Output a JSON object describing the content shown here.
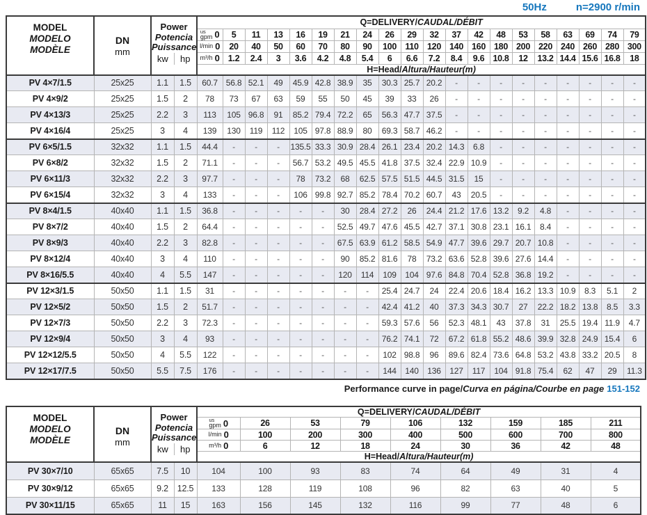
{
  "page_header": {
    "frequency": "50Hz",
    "speed": "n=2900 r/min"
  },
  "colors": {
    "accent_blue": "#1677bd",
    "row_shade": "#e8eaf2",
    "grid_light": "#b4b4b4",
    "grid_dark": "#3a3a3a"
  },
  "note": {
    "plain": "Performance curve in page/",
    "italic": "Curva en página/Courbe en page",
    "pages": "151-152"
  },
  "tables": [
    {
      "name": "small-pumps",
      "header": {
        "model_lines": [
          "MODEL",
          "MODELO",
          "MODÈLE"
        ],
        "dn_label": "DN",
        "dn_unit": "mm",
        "power_lines": [
          "Power",
          "Potencia",
          "Puissance"
        ],
        "kw_label": "kw",
        "hp_label": "hp",
        "q_title": {
          "plain": "Q=DELIVERY/",
          "italic": "CAUDAL/DÉBIT"
        },
        "h_title": {
          "plain": "H=Head/",
          "italic": "Altura/Hauteur",
          "unit": "(m)"
        },
        "unit_rows": [
          {
            "label_top": "us",
            "label": "gpm",
            "zero": "0",
            "values": [
              "5",
              "11",
              "13",
              "16",
              "19",
              "21",
              "24",
              "26",
              "29",
              "32",
              "37",
              "42",
              "48",
              "53",
              "58",
              "63",
              "69",
              "74",
              "79"
            ]
          },
          {
            "label": "l/min",
            "zero": "0",
            "values": [
              "20",
              "40",
              "50",
              "60",
              "70",
              "80",
              "90",
              "100",
              "110",
              "120",
              "140",
              "160",
              "180",
              "200",
              "220",
              "240",
              "260",
              "280",
              "300"
            ]
          },
          {
            "label": "m³/h",
            "zero": "0",
            "values": [
              "1.2",
              "2.4",
              "3",
              "3.6",
              "4.2",
              "4.8",
              "5.4",
              "6",
              "6.6",
              "7.2",
              "8.4",
              "9.6",
              "10.8",
              "12",
              "13.2",
              "14.4",
              "15.6",
              "16.8",
              "18"
            ]
          }
        ]
      },
      "group_breaks": [
        3,
        7,
        12
      ],
      "rows": [
        {
          "model": "PV 4×7/1.5",
          "dn": "25x25",
          "kw": "1.1",
          "hp": "1.5",
          "heads": [
            "60.7",
            "56.8",
            "52.1",
            "49",
            "45.9",
            "42.8",
            "38.9",
            "35",
            "30.3",
            "25.7",
            "20.2",
            "-",
            "-",
            "-",
            "-",
            "-",
            "-",
            "-",
            "-",
            "-"
          ]
        },
        {
          "model": "PV 4×9/2",
          "dn": "25x25",
          "kw": "1.5",
          "hp": "2",
          "heads": [
            "78",
            "73",
            "67",
            "63",
            "59",
            "55",
            "50",
            "45",
            "39",
            "33",
            "26",
            "-",
            "-",
            "-",
            "-",
            "-",
            "-",
            "-",
            "-",
            "-"
          ]
        },
        {
          "model": "PV 4×13/3",
          "dn": "25x25",
          "kw": "2.2",
          "hp": "3",
          "heads": [
            "113",
            "105",
            "96.8",
            "91",
            "85.2",
            "79.4",
            "72.2",
            "65",
            "56.3",
            "47.7",
            "37.5",
            "-",
            "-",
            "-",
            "-",
            "-",
            "-",
            "-",
            "-",
            "-"
          ]
        },
        {
          "model": "PV 4×16/4",
          "dn": "25x25",
          "kw": "3",
          "hp": "4",
          "heads": [
            "139",
            "130",
            "119",
            "112",
            "105",
            "97.8",
            "88.9",
            "80",
            "69.3",
            "58.7",
            "46.2",
            "-",
            "-",
            "-",
            "-",
            "-",
            "-",
            "-",
            "-",
            "-"
          ]
        },
        {
          "model": "PV 6×5/1.5",
          "dn": "32x32",
          "kw": "1.1",
          "hp": "1.5",
          "heads": [
            "44.4",
            "-",
            "-",
            "-",
            "135.5",
            "33.3",
            "30.9",
            "28.4",
            "26.1",
            "23.4",
            "20.2",
            "14.3",
            "6.8",
            "-",
            "-",
            "-",
            "-",
            "-",
            "-",
            "-"
          ]
        },
        {
          "model": "PV 6×8/2",
          "dn": "32x32",
          "kw": "1.5",
          "hp": "2",
          "heads": [
            "71.1",
            "-",
            "-",
            "-",
            "56.7",
            "53.2",
            "49.5",
            "45.5",
            "41.8",
            "37.5",
            "32.4",
            "22.9",
            "10.9",
            "-",
            "-",
            "-",
            "-",
            "-",
            "-",
            "-"
          ]
        },
        {
          "model": "PV 6×11/3",
          "dn": "32x32",
          "kw": "2.2",
          "hp": "3",
          "heads": [
            "97.7",
            "-",
            "-",
            "-",
            "78",
            "73.2",
            "68",
            "62.5",
            "57.5",
            "51.5",
            "44.5",
            "31.5",
            "15",
            "-",
            "-",
            "-",
            "-",
            "-",
            "-",
            "-"
          ]
        },
        {
          "model": "PV 6×15/4",
          "dn": "32x32",
          "kw": "3",
          "hp": "4",
          "heads": [
            "133",
            "-",
            "-",
            "-",
            "106",
            "99.8",
            "92.7",
            "85.2",
            "78.4",
            "70.2",
            "60.7",
            "43",
            "20.5",
            "-",
            "-",
            "-",
            "-",
            "-",
            "-",
            "-"
          ]
        },
        {
          "model": "PV 8×4/1.5",
          "dn": "40x40",
          "kw": "1.1",
          "hp": "1.5",
          "heads": [
            "36.8",
            "-",
            "-",
            "-",
            "-",
            "-",
            "30",
            "28.4",
            "27.2",
            "26",
            "24.4",
            "21.2",
            "17.6",
            "13.2",
            "9.2",
            "4.8",
            "-",
            "-",
            "-",
            "-"
          ]
        },
        {
          "model": "PV 8×7/2",
          "dn": "40x40",
          "kw": "1.5",
          "hp": "2",
          "heads": [
            "64.4",
            "-",
            "-",
            "-",
            "-",
            "-",
            "52.5",
            "49.7",
            "47.6",
            "45.5",
            "42.7",
            "37.1",
            "30.8",
            "23.1",
            "16.1",
            "8.4",
            "-",
            "-",
            "-",
            "-"
          ]
        },
        {
          "model": "PV 8×9/3",
          "dn": "40x40",
          "kw": "2.2",
          "hp": "3",
          "heads": [
            "82.8",
            "-",
            "-",
            "-",
            "-",
            "-",
            "67.5",
            "63.9",
            "61.2",
            "58.5",
            "54.9",
            "47.7",
            "39.6",
            "29.7",
            "20.7",
            "10.8",
            "-",
            "-",
            "-",
            "-"
          ]
        },
        {
          "model": "PV 8×12/4",
          "dn": "40x40",
          "kw": "3",
          "hp": "4",
          "heads": [
            "110",
            "-",
            "-",
            "-",
            "-",
            "-",
            "90",
            "85.2",
            "81.6",
            "78",
            "73.2",
            "63.6",
            "52.8",
            "39.6",
            "27.6",
            "14.4",
            "-",
            "-",
            "-",
            "-"
          ]
        },
        {
          "model": "PV 8×16/5.5",
          "dn": "40x40",
          "kw": "4",
          "hp": "5.5",
          "heads": [
            "147",
            "-",
            "-",
            "-",
            "-",
            "-",
            "120",
            "114",
            "109",
            "104",
            "97.6",
            "84.8",
            "70.4",
            "52.8",
            "36.8",
            "19.2",
            "-",
            "-",
            "-",
            "-"
          ]
        },
        {
          "model": "PV 12×3/1.5",
          "dn": "50x50",
          "kw": "1.1",
          "hp": "1.5",
          "heads": [
            "31",
            "-",
            "-",
            "-",
            "-",
            "-",
            "-",
            "-",
            "25.4",
            "24.7",
            "24",
            "22.4",
            "20.6",
            "18.4",
            "16.2",
            "13.3",
            "10.9",
            "8.3",
            "5.1",
            "2"
          ]
        },
        {
          "model": "PV 12×5/2",
          "dn": "50x50",
          "kw": "1.5",
          "hp": "2",
          "heads": [
            "51.7",
            "-",
            "-",
            "-",
            "-",
            "-",
            "-",
            "-",
            "42.4",
            "41.2",
            "40",
            "37.3",
            "34.3",
            "30.7",
            "27",
            "22.2",
            "18.2",
            "13.8",
            "8.5",
            "3.3"
          ]
        },
        {
          "model": "PV 12×7/3",
          "dn": "50x50",
          "kw": "2.2",
          "hp": "3",
          "heads": [
            "72.3",
            "-",
            "-",
            "-",
            "-",
            "-",
            "-",
            "-",
            "59.3",
            "57.6",
            "56",
            "52.3",
            "48.1",
            "43",
            "37.8",
            "31",
            "25.5",
            "19.4",
            "11.9",
            "4.7"
          ]
        },
        {
          "model": "PV 12×9/4",
          "dn": "50x50",
          "kw": "3",
          "hp": "4",
          "heads": [
            "93",
            "-",
            "-",
            "-",
            "-",
            "-",
            "-",
            "-",
            "76.2",
            "74.1",
            "72",
            "67.2",
            "61.8",
            "55.2",
            "48.6",
            "39.9",
            "32.8",
            "24.9",
            "15.4",
            "6"
          ]
        },
        {
          "model": "PV 12×12/5.5",
          "dn": "50x50",
          "kw": "4",
          "hp": "5.5",
          "heads": [
            "122",
            "-",
            "-",
            "-",
            "-",
            "-",
            "-",
            "-",
            "102",
            "98.8",
            "96",
            "89.6",
            "82.4",
            "73.6",
            "64.8",
            "53.2",
            "43.8",
            "33.2",
            "20.5",
            "8"
          ]
        },
        {
          "model": "PV 12×17/7.5",
          "dn": "50x50",
          "kw": "5.5",
          "hp": "7.5",
          "heads": [
            "176",
            "-",
            "-",
            "-",
            "-",
            "-",
            "-",
            "-",
            "144",
            "140",
            "136",
            "127",
            "117",
            "104",
            "91.8",
            "75.4",
            "62",
            "47",
            "29",
            "11.3"
          ]
        }
      ]
    },
    {
      "name": "large-pumps",
      "header": {
        "model_lines": [
          "MODEL",
          "MODELO",
          "MODÈLE"
        ],
        "dn_label": "DN",
        "dn_unit": "mm",
        "power_lines": [
          "Power",
          "Potencia",
          "Puissance"
        ],
        "kw_label": "kw",
        "hp_label": "hp",
        "q_title": {
          "plain": "Q=DELIVERY/",
          "italic": "CAUDAL/DÉBIT"
        },
        "h_title": {
          "plain": "H=Head/",
          "italic": "Altura/Hauteur",
          "unit": "(m)"
        },
        "unit_rows": [
          {
            "label_top": "us",
            "label": "gpm",
            "zero": "0",
            "values": [
              "26",
              "53",
              "79",
              "106",
              "132",
              "159",
              "185",
              "211"
            ]
          },
          {
            "label": "l/min",
            "zero": "0",
            "values": [
              "100",
              "200",
              "300",
              "400",
              "500",
              "600",
              "700",
              "800"
            ]
          },
          {
            "label": "m³/h",
            "zero": "0",
            "values": [
              "6",
              "12",
              "18",
              "24",
              "30",
              "36",
              "42",
              "48"
            ]
          }
        ]
      },
      "group_breaks": [],
      "rows": [
        {
          "model": "PV 30×7/10",
          "dn": "65x65",
          "kw": "7.5",
          "hp": "10",
          "heads": [
            "104",
            "100",
            "93",
            "83",
            "74",
            "64",
            "49",
            "31",
            "4"
          ]
        },
        {
          "model": "PV 30×9/12",
          "dn": "65x65",
          "kw": "9.2",
          "hp": "12.5",
          "heads": [
            "133",
            "128",
            "119",
            "108",
            "96",
            "82",
            "63",
            "40",
            "5"
          ]
        },
        {
          "model": "PV 30×11/15",
          "dn": "65x65",
          "kw": "11",
          "hp": "15",
          "heads": [
            "163",
            "156",
            "145",
            "132",
            "116",
            "99",
            "77",
            "48",
            "6"
          ]
        }
      ]
    }
  ]
}
